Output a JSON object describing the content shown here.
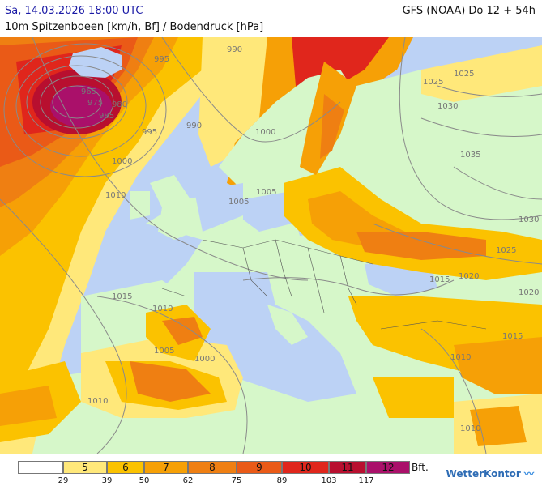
{
  "header": {
    "datetime": "Sa, 14.03.2026 18:00 UTC",
    "model_run": "GFS (NOAA) Do 12 + 54h",
    "parameter": "10m Spitzenboeen [km/h, Bf] / Bodendruck [hPa]"
  },
  "colors": {
    "sea": "#bcd2f5",
    "land_calm": "#d6f7c9",
    "bf5": "#ffe87a",
    "bf6": "#fbc200",
    "bf7": "#f6a006",
    "bf8": "#ef7f12",
    "bf9": "#ea5a17",
    "bf10": "#e0261c",
    "bf11": "#b80f2f",
    "bf12": "#aa106a",
    "isobar": "#8a8a8a"
  },
  "isobar_labels": [
    "995",
    "990",
    "965",
    "975",
    "980",
    "985",
    "995",
    "990",
    "1000",
    "1010",
    "1005",
    "1000",
    "1005",
    "1015",
    "1010",
    "1005",
    "1000",
    "1015",
    "1020",
    "1025",
    "1030",
    "1035",
    "1030",
    "1025",
    "1020",
    "1010",
    "1015",
    "1010",
    "1010",
    "1025"
  ],
  "legend": {
    "bft": [
      "5",
      "6",
      "7",
      "8",
      "9",
      "10",
      "11",
      "12"
    ],
    "kmh": [
      "29",
      "39",
      "50",
      "62",
      "75",
      "89",
      "103",
      "117"
    ],
    "unit": "Bft."
  },
  "brand": "WetterKontor"
}
